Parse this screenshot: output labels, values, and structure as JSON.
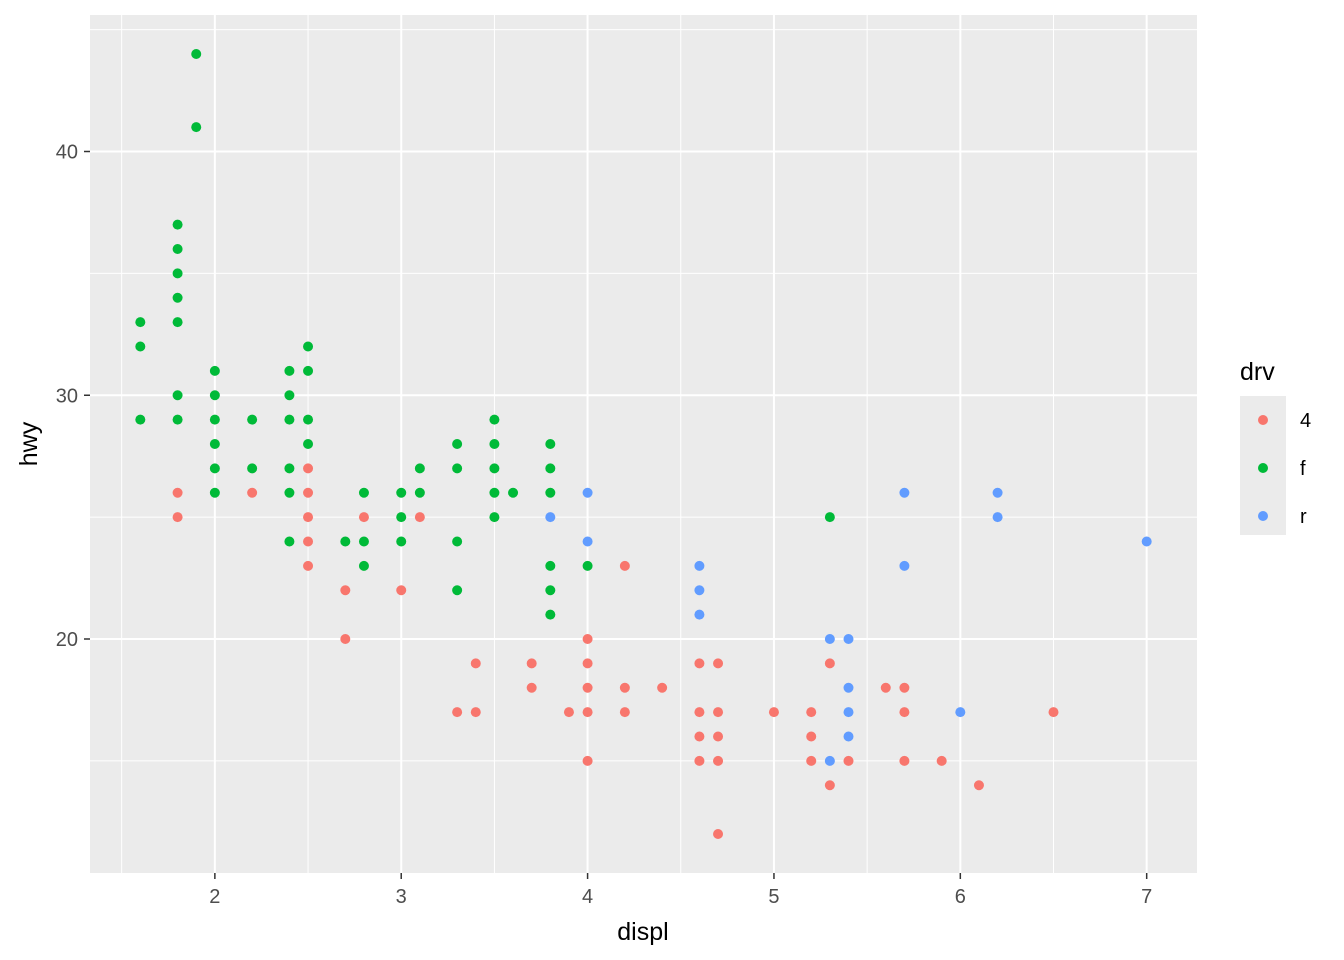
{
  "chart_data": {
    "type": "scatter",
    "xlabel": "displ",
    "ylabel": "hwy",
    "xlim": [
      1.33,
      7.27
    ],
    "ylim": [
      10.4,
      45.6
    ],
    "x_ticks": [
      2,
      3,
      4,
      5,
      6,
      7
    ],
    "y_ticks": [
      20,
      30,
      40
    ],
    "grid": true,
    "legend": {
      "title": "drv",
      "position": "right"
    },
    "series": [
      {
        "name": "4",
        "color": "#F8766D",
        "points": [
          [
            1.8,
            26
          ],
          [
            1.8,
            25
          ],
          [
            2.2,
            26
          ],
          [
            2.5,
            27
          ],
          [
            2.5,
            26
          ],
          [
            2.5,
            25
          ],
          [
            2.5,
            24
          ],
          [
            2.5,
            23
          ],
          [
            2.7,
            22
          ],
          [
            2.7,
            20
          ],
          [
            2.8,
            25
          ],
          [
            3.0,
            22
          ],
          [
            3.1,
            25
          ],
          [
            3.3,
            17
          ],
          [
            3.4,
            19
          ],
          [
            3.4,
            17
          ],
          [
            3.7,
            19
          ],
          [
            3.7,
            18
          ],
          [
            3.9,
            17
          ],
          [
            4.0,
            20
          ],
          [
            4.0,
            19
          ],
          [
            4.0,
            18
          ],
          [
            4.0,
            17
          ],
          [
            4.0,
            15
          ],
          [
            4.2,
            23
          ],
          [
            4.2,
            18
          ],
          [
            4.2,
            17
          ],
          [
            4.4,
            18
          ],
          [
            4.6,
            19
          ],
          [
            4.6,
            17
          ],
          [
            4.6,
            16
          ],
          [
            4.6,
            15
          ],
          [
            4.7,
            19
          ],
          [
            4.7,
            17
          ],
          [
            4.7,
            16
          ],
          [
            4.7,
            15
          ],
          [
            4.7,
            12
          ],
          [
            5.0,
            17
          ],
          [
            5.2,
            17
          ],
          [
            5.2,
            16
          ],
          [
            5.2,
            15
          ],
          [
            5.3,
            19
          ],
          [
            5.3,
            14
          ],
          [
            5.4,
            15
          ],
          [
            5.6,
            18
          ],
          [
            5.7,
            18
          ],
          [
            5.7,
            17
          ],
          [
            5.7,
            15
          ],
          [
            5.9,
            15
          ],
          [
            6.1,
            14
          ],
          [
            6.5,
            17
          ]
        ]
      },
      {
        "name": "f",
        "color": "#00BA38",
        "points": [
          [
            1.6,
            33
          ],
          [
            1.6,
            32
          ],
          [
            1.6,
            29
          ],
          [
            1.8,
            37
          ],
          [
            1.8,
            36
          ],
          [
            1.8,
            35
          ],
          [
            1.8,
            34
          ],
          [
            1.8,
            33
          ],
          [
            1.8,
            30
          ],
          [
            1.8,
            29
          ],
          [
            1.9,
            44
          ],
          [
            1.9,
            41
          ],
          [
            2.0,
            31
          ],
          [
            2.0,
            30
          ],
          [
            2.0,
            29
          ],
          [
            2.0,
            28
          ],
          [
            2.0,
            27
          ],
          [
            2.0,
            26
          ],
          [
            2.2,
            29
          ],
          [
            2.2,
            27
          ],
          [
            2.4,
            31
          ],
          [
            2.4,
            30
          ],
          [
            2.4,
            29
          ],
          [
            2.4,
            27
          ],
          [
            2.4,
            26
          ],
          [
            2.4,
            24
          ],
          [
            2.5,
            32
          ],
          [
            2.5,
            31
          ],
          [
            2.5,
            29
          ],
          [
            2.5,
            28
          ],
          [
            2.7,
            24
          ],
          [
            2.8,
            26
          ],
          [
            2.8,
            24
          ],
          [
            2.8,
            23
          ],
          [
            3.0,
            26
          ],
          [
            3.0,
            25
          ],
          [
            3.0,
            24
          ],
          [
            3.1,
            27
          ],
          [
            3.1,
            26
          ],
          [
            3.3,
            28
          ],
          [
            3.3,
            27
          ],
          [
            3.3,
            24
          ],
          [
            3.3,
            22
          ],
          [
            3.5,
            29
          ],
          [
            3.5,
            28
          ],
          [
            3.5,
            27
          ],
          [
            3.5,
            26
          ],
          [
            3.5,
            25
          ],
          [
            3.6,
            26
          ],
          [
            3.8,
            28
          ],
          [
            3.8,
            27
          ],
          [
            3.8,
            26
          ],
          [
            3.8,
            23
          ],
          [
            3.8,
            22
          ],
          [
            3.8,
            21
          ],
          [
            4.0,
            23
          ],
          [
            5.3,
            25
          ]
        ]
      },
      {
        "name": "r",
        "color": "#619CFF",
        "points": [
          [
            3.8,
            25
          ],
          [
            4.0,
            26
          ],
          [
            4.0,
            24
          ],
          [
            4.6,
            23
          ],
          [
            4.6,
            22
          ],
          [
            4.6,
            21
          ],
          [
            5.3,
            20
          ],
          [
            5.3,
            15
          ],
          [
            5.4,
            20
          ],
          [
            5.4,
            18
          ],
          [
            5.4,
            17
          ],
          [
            5.4,
            16
          ],
          [
            5.7,
            26
          ],
          [
            5.7,
            23
          ],
          [
            6.0,
            17
          ],
          [
            6.2,
            26
          ],
          [
            6.2,
            25
          ],
          [
            7.0,
            24
          ]
        ]
      }
    ]
  }
}
